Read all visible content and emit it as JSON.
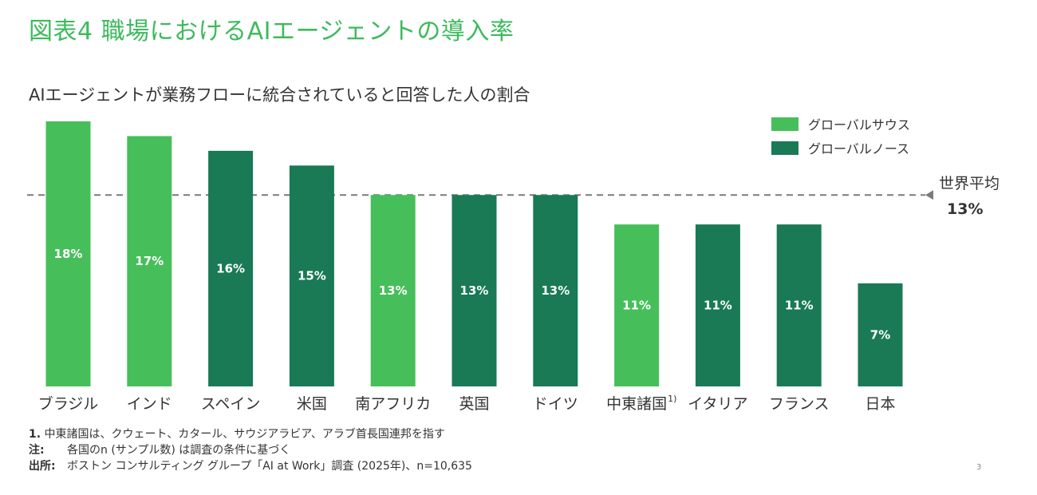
{
  "title": "図表4  職場におけるAIエージェントの導入率",
  "chart_data": {
    "type": "bar",
    "title": "AIエージェントが業務フローに統合されていると回答した人の割合",
    "categories": [
      "ブラジル",
      "インド",
      "スペイン",
      "米国",
      "南アフリカ",
      "英国",
      "ドイツ",
      "中東諸国",
      "イタリア",
      "フランス",
      "日本"
    ],
    "category_superscripts": [
      "",
      "",
      "",
      "",
      "",
      "",
      "",
      "1)",
      "",
      "",
      ""
    ],
    "values": [
      18,
      17,
      16,
      15,
      13,
      13,
      13,
      11,
      11,
      11,
      7
    ],
    "value_labels": [
      "18%",
      "17%",
      "16%",
      "15%",
      "13%",
      "13%",
      "13%",
      "11%",
      "11%",
      "11%",
      "7%"
    ],
    "groups": [
      "global_south",
      "global_south",
      "global_north",
      "global_north",
      "global_south",
      "global_north",
      "global_north",
      "global_south",
      "global_north",
      "global_north",
      "global_north"
    ],
    "legend": [
      {
        "key": "global_south",
        "label": "グローバルサウス",
        "color": "#46bf5a"
      },
      {
        "key": "global_north",
        "label": "グローバルノース",
        "color": "#197a55"
      }
    ],
    "legend_position": "top-right",
    "reference_line": {
      "value": 13,
      "label": "世界平均",
      "value_label": "13%"
    },
    "ylim": [
      0,
      18
    ],
    "grid": false
  },
  "footnotes": [
    {
      "key": "1.",
      "text": "中東諸国は、クウェート、カタール、サウジアラビア、アラブ首長国連邦を指す"
    },
    {
      "key": "注:",
      "text": "各国のn (サンプル数) は調査の条件に基づく"
    },
    {
      "key": "出所:",
      "text": "ボストン コンサルティング グループ「AI at Work」調査 (2025年)、n=10,635"
    }
  ],
  "page_number": "3"
}
